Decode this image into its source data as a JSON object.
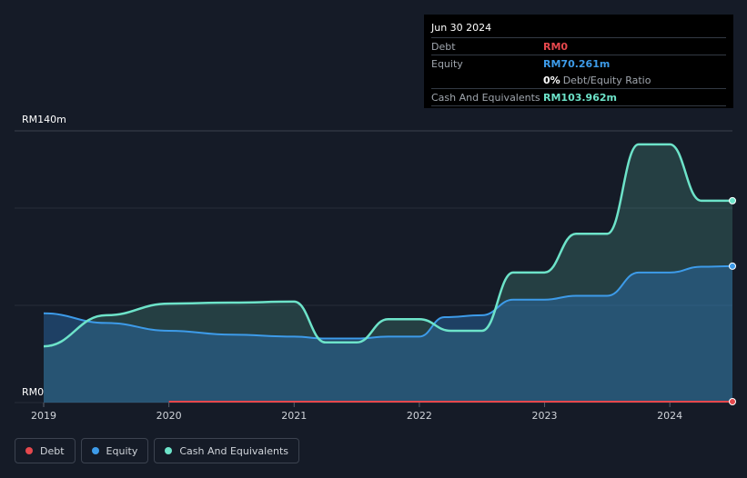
{
  "tooltip": {
    "date": "Jun 30 2024",
    "rows": [
      {
        "label": "Debt",
        "value": "RM0",
        "color": "#e5484d"
      },
      {
        "label": "Equity",
        "value": "RM70.261m",
        "color": "#3d9be9"
      },
      {
        "ratio_value": "0%",
        "ratio_label": "Debt/Equity Ratio"
      },
      {
        "label": "Cash And Equivalents",
        "value": "RM103.962m",
        "color": "#6de3c9"
      }
    ]
  },
  "legend": [
    {
      "label": "Debt",
      "color": "#e5484d"
    },
    {
      "label": "Equity",
      "color": "#3d9be9"
    },
    {
      "label": "Cash And Equivalents",
      "color": "#6de3c9"
    }
  ],
  "chart_data": {
    "type": "area",
    "y_top_label": "RM140m",
    "y_bottom_label": "RM0",
    "ylim": [
      0,
      140
    ],
    "xlim": [
      2019,
      2024.5
    ],
    "x_ticks": [
      "2019",
      "2020",
      "2021",
      "2022",
      "2023",
      "2024"
    ],
    "grid": true,
    "series": [
      {
        "name": "Debt",
        "color": "#e5484d",
        "points": [
          [
            2020,
            0
          ],
          [
            2024.5,
            0
          ]
        ]
      },
      {
        "name": "Equity",
        "color": "#3d9be9",
        "points": [
          [
            2019,
            46
          ],
          [
            2019.5,
            41
          ],
          [
            2020,
            37
          ],
          [
            2020.5,
            35
          ],
          [
            2021,
            34
          ],
          [
            2021.25,
            33
          ],
          [
            2021.5,
            33
          ],
          [
            2021.75,
            34
          ],
          [
            2022,
            34
          ],
          [
            2022.2,
            44
          ],
          [
            2022.5,
            45
          ],
          [
            2022.75,
            53
          ],
          [
            2023,
            53
          ],
          [
            2023.25,
            55
          ],
          [
            2023.5,
            55
          ],
          [
            2023.75,
            67
          ],
          [
            2024,
            67
          ],
          [
            2024.25,
            70
          ],
          [
            2024.5,
            70.3
          ]
        ]
      },
      {
        "name": "Cash And Equivalents",
        "color": "#6de3c9",
        "points": [
          [
            2019,
            29
          ],
          [
            2019.5,
            45
          ],
          [
            2020,
            51
          ],
          [
            2020.5,
            51.5
          ],
          [
            2021,
            52
          ],
          [
            2021.25,
            31
          ],
          [
            2021.5,
            31
          ],
          [
            2021.75,
            43
          ],
          [
            2022,
            43
          ],
          [
            2022.25,
            37
          ],
          [
            2022.5,
            37
          ],
          [
            2022.75,
            67
          ],
          [
            2023,
            67
          ],
          [
            2023.25,
            87
          ],
          [
            2023.5,
            87
          ],
          [
            2023.75,
            133
          ],
          [
            2024,
            133
          ],
          [
            2024.25,
            104
          ],
          [
            2024.5,
            104
          ]
        ]
      }
    ]
  }
}
